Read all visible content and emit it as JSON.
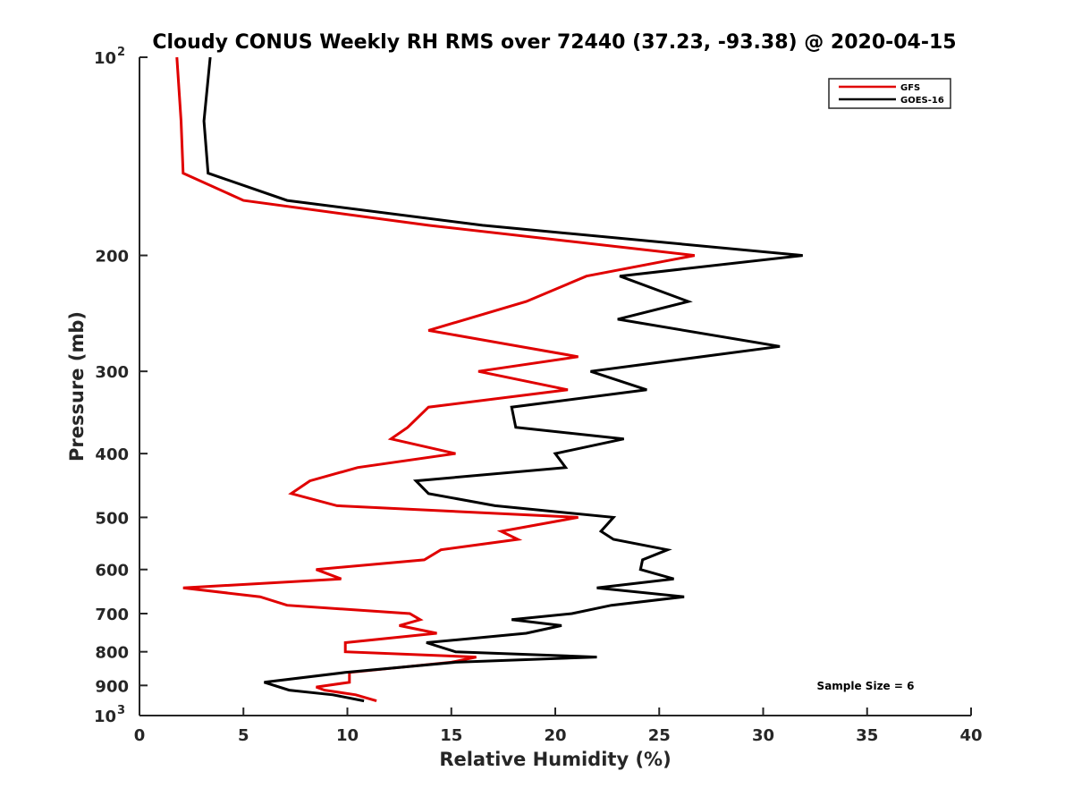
{
  "chart_data": {
    "type": "line",
    "title": "Cloudy CONUS Weekly RH RMS over 72440 (37.23, -93.38) @ 2020-04-15",
    "xlabel": "Relative Humidity (%)",
    "ylabel": "Pressure (mb)",
    "xlim": [
      0,
      40
    ],
    "ylim": [
      100,
      1000
    ],
    "y_scale": "log",
    "y_reversed": true,
    "grid": false,
    "legend_position": "top-right",
    "x_ticks": [
      "0",
      "5",
      "10",
      "15",
      "20",
      "25",
      "30",
      "35",
      "40"
    ],
    "y_ticks": [
      {
        "value": 100,
        "label": "10",
        "sup": "2"
      },
      {
        "value": 200,
        "label": "200"
      },
      {
        "value": 300,
        "label": "300"
      },
      {
        "value": 400,
        "label": "400"
      },
      {
        "value": 500,
        "label": "500"
      },
      {
        "value": 600,
        "label": "600"
      },
      {
        "value": 700,
        "label": "700"
      },
      {
        "value": 800,
        "label": "800"
      },
      {
        "value": 900,
        "label": "900"
      },
      {
        "value": 1000,
        "label": "10",
        "sup": "3"
      }
    ],
    "series": [
      {
        "name": "GFS",
        "color": "#e00000",
        "points": [
          [
            1.8,
            100
          ],
          [
            2.0,
            125
          ],
          [
            2.1,
            150
          ],
          [
            5.0,
            165
          ],
          [
            13.9,
            180
          ],
          [
            26.7,
            200
          ],
          [
            21.5,
            215
          ],
          [
            18.6,
            235
          ],
          [
            13.9,
            260
          ],
          [
            21.1,
            285
          ],
          [
            16.3,
            300
          ],
          [
            20.6,
            320
          ],
          [
            13.9,
            340
          ],
          [
            12.9,
            365
          ],
          [
            12.1,
            380
          ],
          [
            15.2,
            400
          ],
          [
            10.5,
            420
          ],
          [
            8.2,
            440
          ],
          [
            7.3,
            460
          ],
          [
            9.5,
            480
          ],
          [
            21.1,
            500
          ],
          [
            17.4,
            525
          ],
          [
            18.2,
            540
          ],
          [
            14.5,
            560
          ],
          [
            13.7,
            580
          ],
          [
            8.5,
            600
          ],
          [
            9.7,
            620
          ],
          [
            2.1,
            640
          ],
          [
            5.8,
            660
          ],
          [
            7.1,
            680
          ],
          [
            13.0,
            700
          ],
          [
            13.5,
            715
          ],
          [
            12.5,
            730
          ],
          [
            14.3,
            750
          ],
          [
            9.9,
            775
          ],
          [
            9.9,
            800
          ],
          [
            16.2,
            815
          ],
          [
            15.0,
            830
          ],
          [
            10.1,
            860
          ],
          [
            10.1,
            890
          ],
          [
            8.5,
            905
          ],
          [
            8.9,
            915
          ],
          [
            10.4,
            930
          ],
          [
            11.4,
            950
          ]
        ]
      },
      {
        "name": "GOES-16",
        "color": "#000000",
        "points": [
          [
            3.4,
            100
          ],
          [
            3.1,
            125
          ],
          [
            3.3,
            150
          ],
          [
            7.1,
            165
          ],
          [
            16.5,
            180
          ],
          [
            31.9,
            200
          ],
          [
            23.1,
            215
          ],
          [
            26.4,
            235
          ],
          [
            23.0,
            250
          ],
          [
            30.8,
            275
          ],
          [
            21.7,
            300
          ],
          [
            24.4,
            320
          ],
          [
            17.9,
            340
          ],
          [
            18.1,
            365
          ],
          [
            23.3,
            380
          ],
          [
            20.0,
            400
          ],
          [
            20.5,
            420
          ],
          [
            13.3,
            440
          ],
          [
            13.9,
            460
          ],
          [
            17.1,
            480
          ],
          [
            22.8,
            500
          ],
          [
            22.2,
            525
          ],
          [
            22.8,
            540
          ],
          [
            25.4,
            560
          ],
          [
            24.2,
            580
          ],
          [
            24.1,
            600
          ],
          [
            25.7,
            620
          ],
          [
            22.0,
            640
          ],
          [
            26.2,
            660
          ],
          [
            22.7,
            680
          ],
          [
            20.8,
            700
          ],
          [
            17.9,
            715
          ],
          [
            20.3,
            730
          ],
          [
            18.6,
            750
          ],
          [
            13.8,
            775
          ],
          [
            15.2,
            800
          ],
          [
            22.0,
            815
          ],
          [
            15.2,
            830
          ],
          [
            9.9,
            860
          ],
          [
            6.0,
            890
          ],
          [
            7.2,
            915
          ],
          [
            9.3,
            930
          ],
          [
            10.8,
            950
          ]
        ]
      }
    ],
    "annotation": "Sample Size = 6"
  }
}
